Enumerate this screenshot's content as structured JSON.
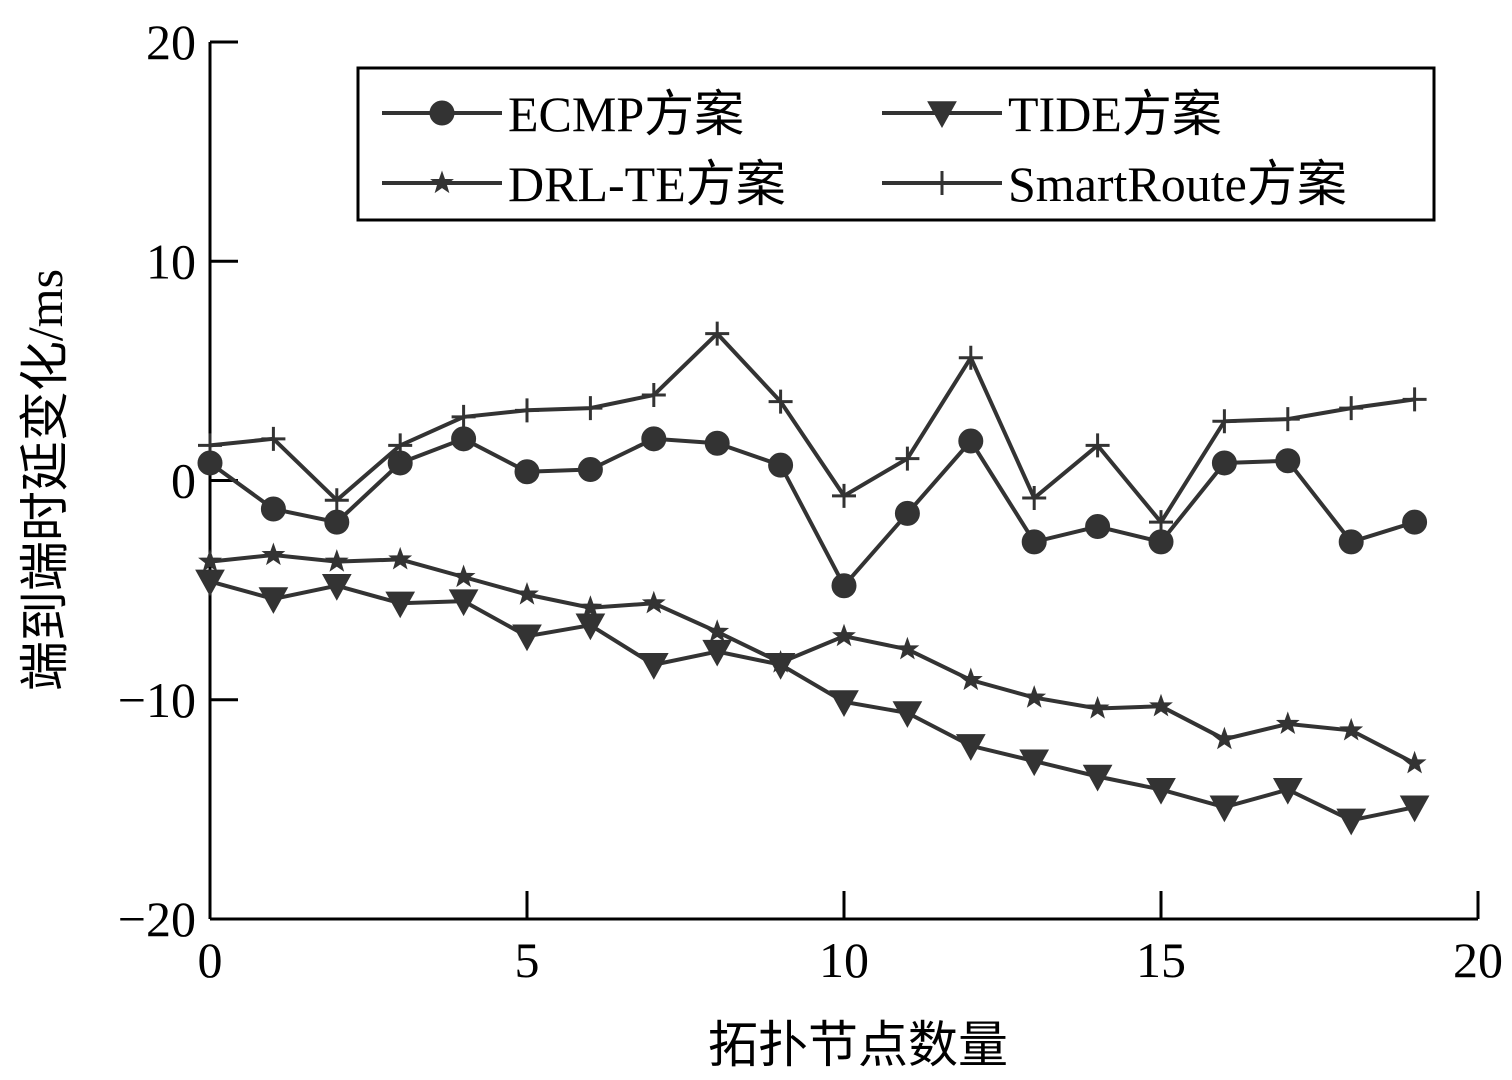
{
  "chart_data": {
    "type": "line",
    "title": "",
    "xlabel": "拓扑节点数量",
    "ylabel": "端到端时延变化/ms",
    "xlim": [
      0,
      20
    ],
    "ylim": [
      -20,
      20
    ],
    "xticks": [
      0,
      5,
      10,
      15,
      20
    ],
    "yticks": [
      -20,
      -10,
      0,
      10,
      20
    ],
    "grid": false,
    "legend_position": "top-right",
    "x": [
      0,
      1,
      2,
      3,
      4,
      5,
      6,
      7,
      8,
      9,
      10,
      11,
      12,
      13,
      14,
      15,
      16,
      17,
      18,
      19
    ],
    "series": [
      {
        "name": "ECMP方案",
        "marker": "circle",
        "values": [
          0.8,
          -1.3,
          -1.9,
          0.8,
          1.9,
          0.4,
          0.5,
          1.9,
          1.7,
          0.7,
          -4.8,
          -1.5,
          1.8,
          -2.8,
          -2.1,
          -2.8,
          0.8,
          0.9,
          -2.8,
          -1.9
        ]
      },
      {
        "name": "TIDE方案",
        "marker": "triangle-down",
        "values": [
          -4.6,
          -5.4,
          -4.8,
          -5.6,
          -5.5,
          -7.1,
          -6.6,
          -8.4,
          -7.8,
          -8.4,
          -10.1,
          -10.6,
          -12.1,
          -12.8,
          -13.5,
          -14.1,
          -14.9,
          -14.1,
          -15.5,
          -14.9
        ]
      },
      {
        "name": "DRL-TE方案",
        "marker": "star",
        "values": [
          -3.7,
          -3.4,
          -3.7,
          -3.6,
          -4.4,
          -5.2,
          -5.8,
          -5.6,
          -6.9,
          -8.3,
          -7.1,
          -7.7,
          -9.1,
          -9.9,
          -10.4,
          -10.3,
          -11.8,
          -11.1,
          -11.4,
          -12.9
        ]
      },
      {
        "name": "SmartRoute方案",
        "marker": "plus",
        "values": [
          1.6,
          1.9,
          -0.9,
          1.6,
          2.9,
          3.2,
          3.3,
          3.9,
          6.7,
          3.6,
          -0.7,
          1.0,
          5.6,
          -0.8,
          1.6,
          -1.9,
          2.7,
          2.8,
          3.3,
          3.7
        ]
      }
    ]
  }
}
